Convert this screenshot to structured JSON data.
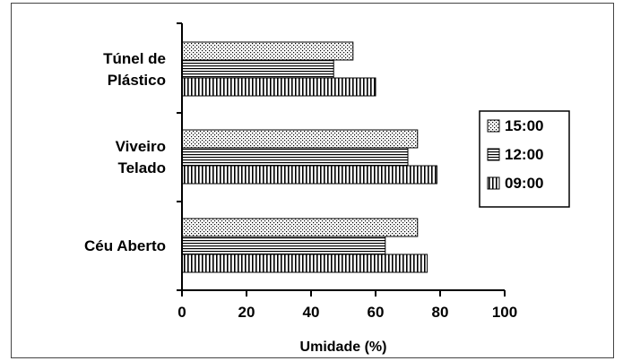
{
  "chart_data": {
    "type": "bar",
    "orientation": "horizontal",
    "categories": [
      "Túnel de Plástico",
      "Viveiro Telado",
      "Céu Aberto"
    ],
    "category_label_lines": [
      [
        "Túnel de",
        "Plástico"
      ],
      [
        "Viveiro",
        "Telado"
      ],
      [
        "Céu Aberto"
      ]
    ],
    "series": [
      {
        "name": "15:00",
        "values": [
          53,
          73,
          73
        ],
        "pattern": "dots"
      },
      {
        "name": "12:00",
        "values": [
          47,
          70,
          63
        ],
        "pattern": "horizontal-lines"
      },
      {
        "name": "09:00",
        "values": [
          60,
          79,
          76
        ],
        "pattern": "vertical-lines"
      }
    ],
    "xlabel": "Umidade (%)",
    "ylabel": "",
    "xlim": [
      0,
      100
    ],
    "xticks": [
      0,
      20,
      40,
      60,
      80,
      100
    ],
    "grid": false,
    "legend_position": "right",
    "colors": {
      "bar_fill": "#ffffff",
      "bar_stroke": "#000000",
      "pattern": "#000000"
    }
  }
}
